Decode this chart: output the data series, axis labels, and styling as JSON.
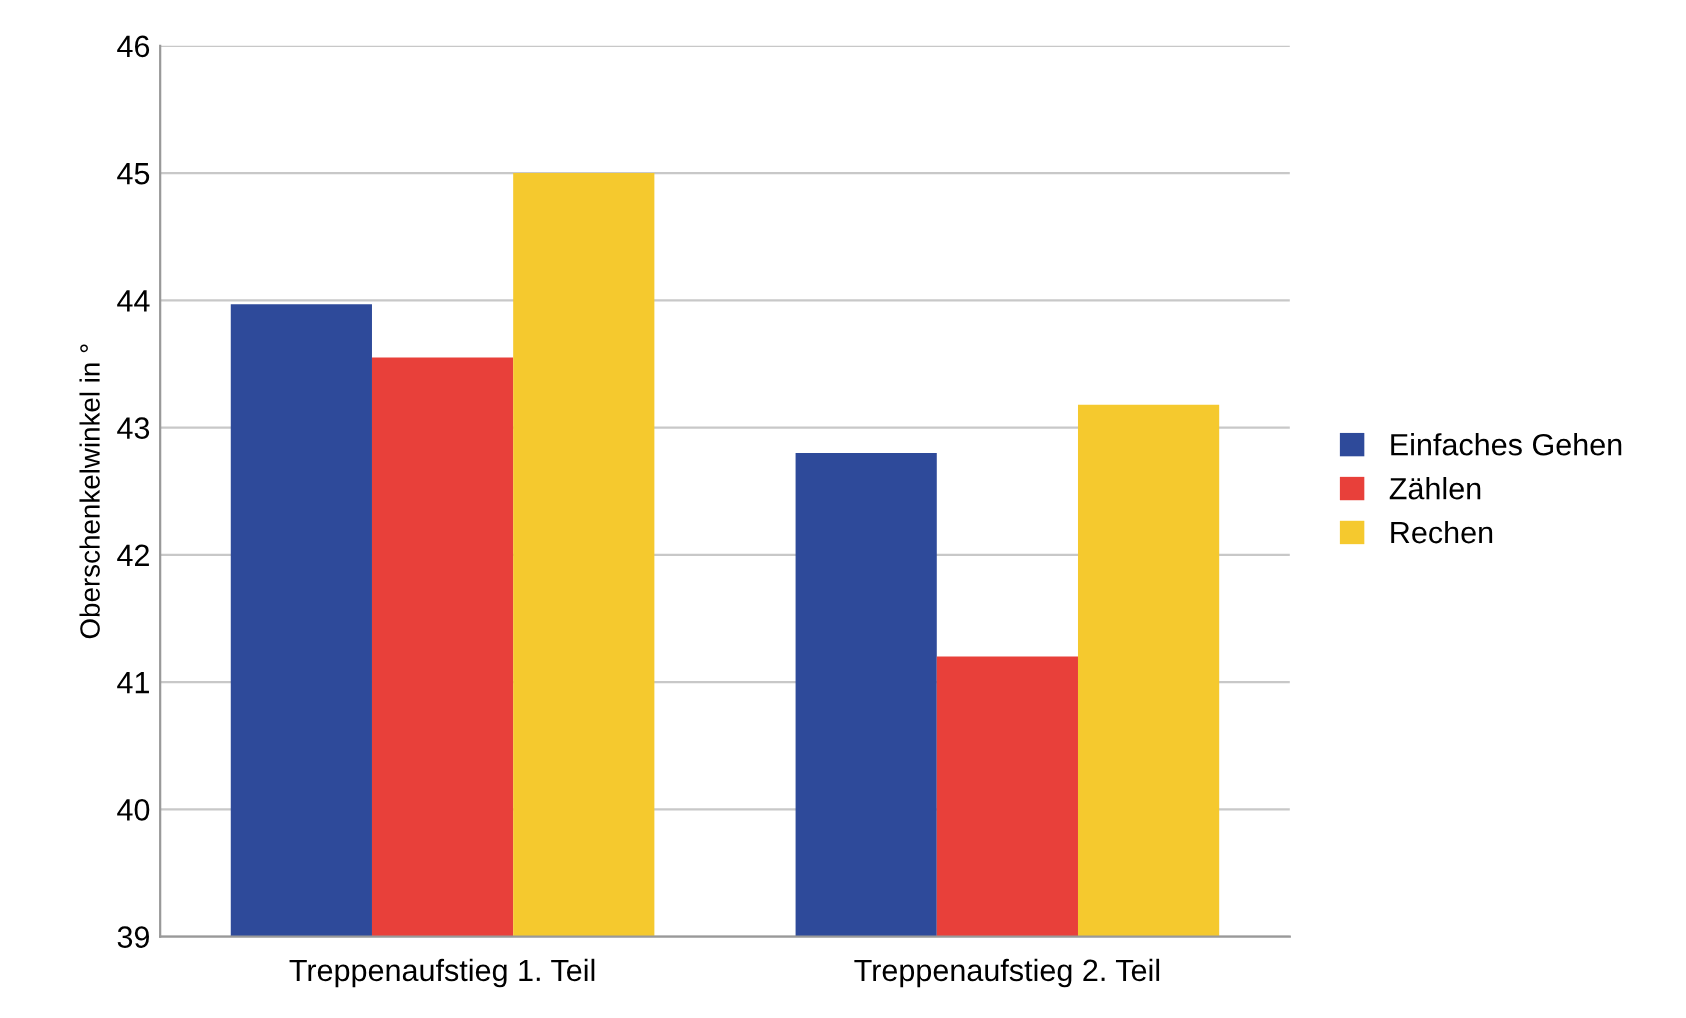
{
  "chart_data": {
    "type": "bar",
    "ylabel": "Oberschenkelwinkel in °",
    "categories": [
      "Treppenaufstieg 1. Teil",
      "Treppenaufstieg 2. Teil"
    ],
    "series": [
      {
        "name": "Einfaches Gehen",
        "color": "#2e4a9a",
        "values": [
          43.97,
          42.8
        ]
      },
      {
        "name": "Zählen",
        "color": "#e8403a",
        "values": [
          43.55,
          41.2
        ]
      },
      {
        "name": "Rechen",
        "color": "#f5c92e",
        "values": [
          45.0,
          43.18
        ]
      }
    ],
    "ylim": [
      39,
      46
    ],
    "yticks": [
      39,
      40,
      41,
      42,
      43,
      44,
      45,
      46
    ],
    "grid": "y",
    "legend": "right"
  }
}
